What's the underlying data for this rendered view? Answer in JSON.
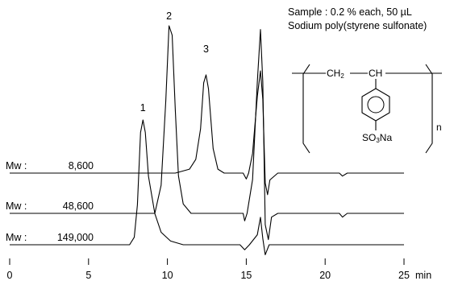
{
  "sample_note": {
    "line1": "Sample : 0.2 % each, 50 µL",
    "line2": "Sodium poly(styrene sulfonate)"
  },
  "structure": {
    "ch2": "CH2",
    "ch": "CH",
    "group": "SO3Na",
    "repeat": "n"
  },
  "chart_data": {
    "type": "line",
    "title": "",
    "xlabel": "min",
    "ylabel": "",
    "xlim": [
      0,
      25
    ],
    "x_ticks": [
      0,
      5,
      10,
      15,
      20,
      25
    ],
    "grid": false,
    "legend": "none",
    "series": [
      {
        "name": "Mw : 8,600",
        "label_prefix": "Mw :",
        "label_value": "8,600",
        "points": [
          [
            0,
            0
          ],
          [
            10.5,
            0
          ],
          [
            11.4,
            0.04
          ],
          [
            11.8,
            0.14
          ],
          [
            12.1,
            0.45
          ],
          [
            12.3,
            0.92
          ],
          [
            12.45,
            1.0
          ],
          [
            12.6,
            0.86
          ],
          [
            12.9,
            0.25
          ],
          [
            13.2,
            0.04
          ],
          [
            13.6,
            0
          ],
          [
            14.8,
            0
          ],
          [
            15.0,
            -0.06
          ],
          [
            15.15,
            0
          ],
          [
            15.4,
            0.2
          ],
          [
            15.7,
            0.78
          ],
          [
            15.9,
            1.04
          ],
          [
            16.05,
            0.75
          ],
          [
            16.2,
            -0.1
          ],
          [
            16.35,
            -0.22
          ],
          [
            16.5,
            -0.07
          ],
          [
            17,
            0
          ],
          [
            20.9,
            0
          ],
          [
            21.1,
            -0.03
          ],
          [
            21.4,
            0
          ],
          [
            25,
            0
          ]
        ]
      },
      {
        "name": "Mw : 48,600",
        "label_prefix": "Mw :",
        "label_value": "48,600",
        "points": [
          [
            0,
            0
          ],
          [
            9.2,
            0
          ],
          [
            9.6,
            0.15
          ],
          [
            9.9,
            0.6
          ],
          [
            10.1,
            1.0
          ],
          [
            10.3,
            0.95
          ],
          [
            10.5,
            0.55
          ],
          [
            10.7,
            0.2
          ],
          [
            11.0,
            0.05
          ],
          [
            11.5,
            0
          ],
          [
            14.8,
            0
          ],
          [
            14.9,
            -0.04
          ],
          [
            15.05,
            0
          ],
          [
            15.4,
            0.18
          ],
          [
            15.7,
            0.7
          ],
          [
            15.9,
            0.98
          ],
          [
            16.05,
            0.7
          ],
          [
            16.2,
            -0.06
          ],
          [
            16.4,
            -0.14
          ],
          [
            16.6,
            -0.02
          ],
          [
            17,
            0
          ],
          [
            20.9,
            0
          ],
          [
            21.1,
            -0.02
          ],
          [
            21.4,
            0
          ],
          [
            25,
            0
          ]
        ]
      },
      {
        "name": "Mw : 149,000",
        "label_prefix": "Mw :",
        "label_value": "149,000",
        "points": [
          [
            0,
            0
          ],
          [
            7.6,
            0
          ],
          [
            7.9,
            0.06
          ],
          [
            8.1,
            0.32
          ],
          [
            8.3,
            0.9
          ],
          [
            8.45,
            1.0
          ],
          [
            8.6,
            0.9
          ],
          [
            8.8,
            0.55
          ],
          [
            9.2,
            0.25
          ],
          [
            9.6,
            0.1
          ],
          [
            10.2,
            0.03
          ],
          [
            11,
            0
          ],
          [
            14.6,
            0
          ],
          [
            14.9,
            -0.04
          ],
          [
            15.2,
            0
          ],
          [
            15.7,
            0.08
          ],
          [
            15.9,
            0.22
          ],
          [
            16.05,
            0.05
          ],
          [
            16.2,
            -0.08
          ],
          [
            16.45,
            0
          ],
          [
            25,
            0
          ]
        ]
      }
    ],
    "peak_annotations": [
      {
        "label": "1",
        "x": 8.45
      },
      {
        "label": "2",
        "x": 10.1
      },
      {
        "label": "3",
        "x": 12.45
      }
    ]
  }
}
